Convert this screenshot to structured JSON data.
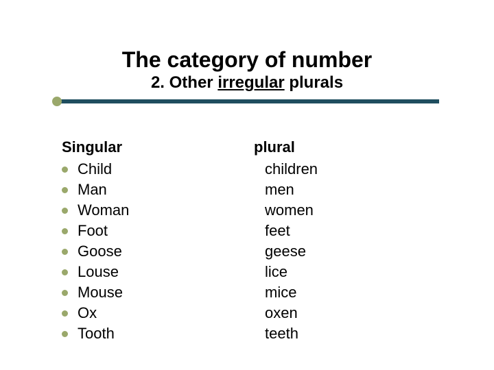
{
  "title": "The category of number",
  "subtitle_prefix": "2. Other ",
  "subtitle_underlined": "irregular",
  "subtitle_suffix": " plurals",
  "colors": {
    "rule": "#1f4e5f",
    "rule_hex_approx": "#214a5a",
    "bullet": "#9aa86b",
    "text": "#000000",
    "background": "#ffffff"
  },
  "headers": {
    "singular": "Singular",
    "plural": "plural"
  },
  "pairs": [
    {
      "singular": "Child",
      "plural": "children"
    },
    {
      "singular": "Man",
      "plural": "men"
    },
    {
      "singular": "Woman",
      "plural": "women"
    },
    {
      "singular": "Foot",
      "plural": "feet"
    },
    {
      "singular": "Goose",
      "plural": "geese"
    },
    {
      "singular": "Louse",
      "plural": "lice"
    },
    {
      "singular": "Mouse",
      "plural": "mice"
    },
    {
      "singular": "Ox",
      "plural": "oxen"
    },
    {
      "singular": "Tooth",
      "plural": "teeth"
    }
  ],
  "typography": {
    "title_fontsize": 32,
    "subtitle_fontsize": 24,
    "body_fontsize": 22,
    "font_family": "Arial"
  },
  "layout": {
    "slide_width": 720,
    "slide_height": 540,
    "rule_width": 560,
    "rule_thickness": 6,
    "bullet_diameter": 9
  }
}
